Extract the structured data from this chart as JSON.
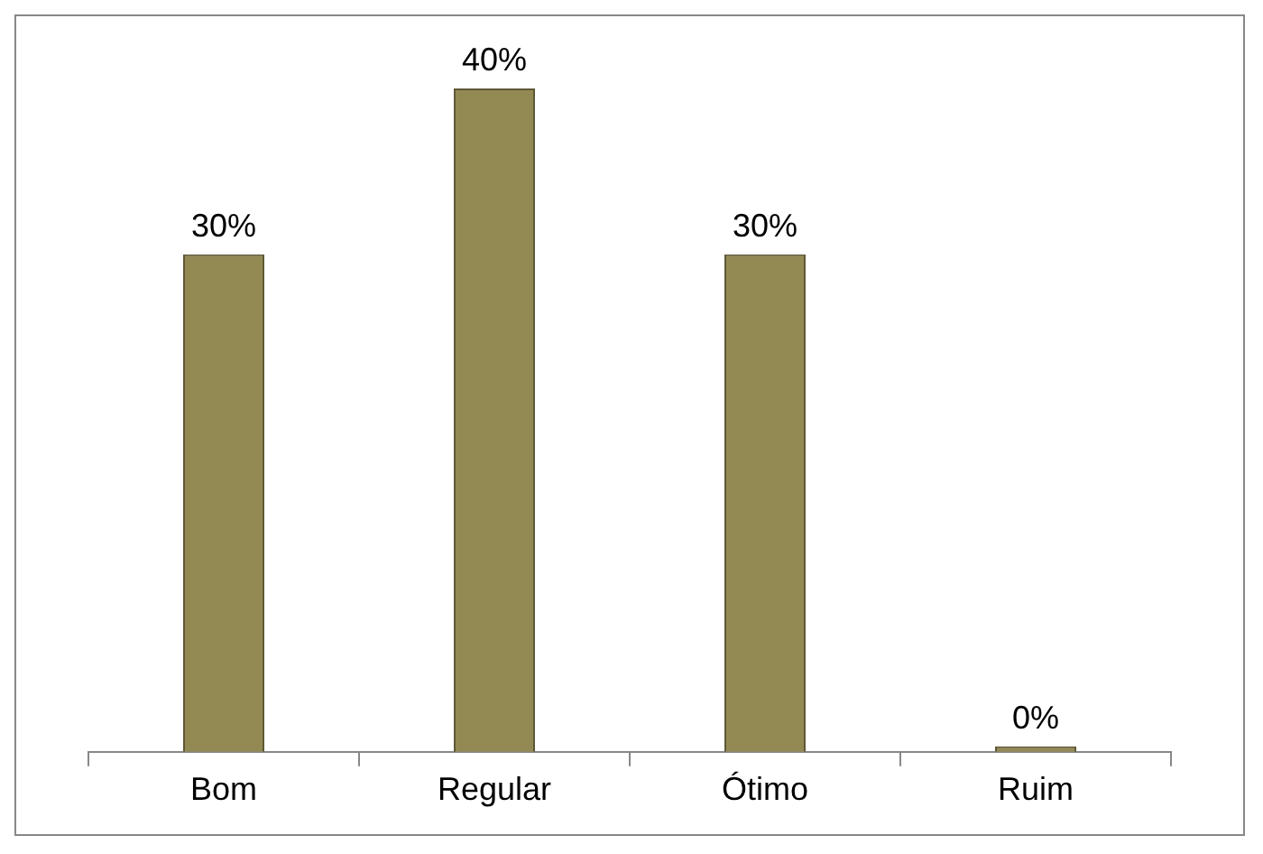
{
  "chart_data": {
    "type": "bar",
    "categories": [
      "Bom",
      "Regular",
      "Ótimo",
      "Ruim"
    ],
    "values": [
      30,
      40,
      30,
      0
    ],
    "value_labels": [
      "30%",
      "40%",
      "30%",
      "0%"
    ],
    "color": "#938953",
    "grid": false,
    "legend": false
  }
}
